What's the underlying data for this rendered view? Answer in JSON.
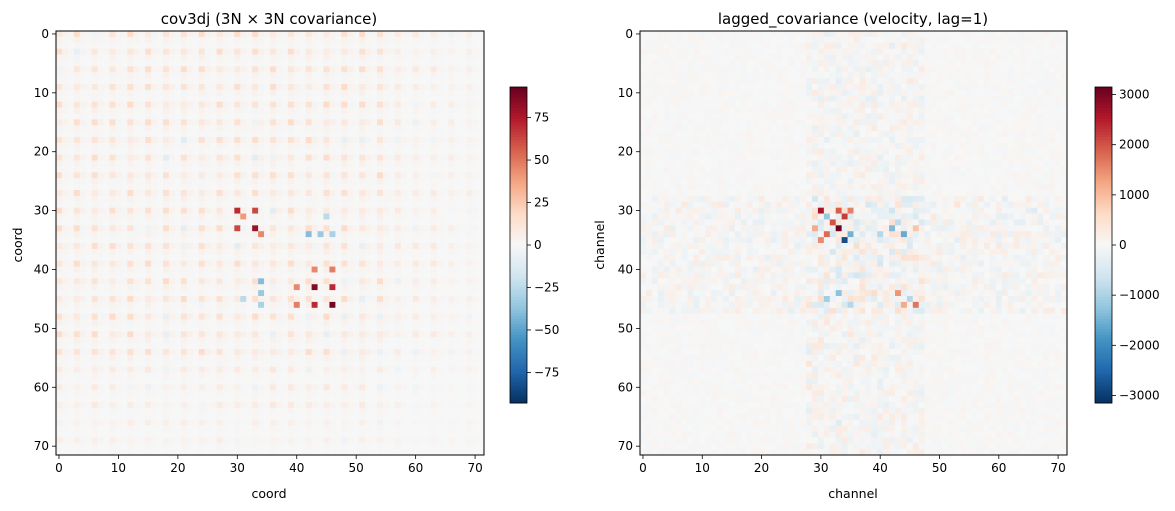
{
  "chart_data": [
    {
      "type": "heatmap",
      "title": "cov3dj  (3N × 3N covariance)",
      "xlabel": "coord",
      "ylabel": "coord",
      "size": 72,
      "xlim": [
        0,
        71
      ],
      "ylim": [
        71,
        0
      ],
      "x_ticks": [
        0,
        10,
        20,
        30,
        40,
        50,
        60,
        70
      ],
      "y_ticks": [
        0,
        10,
        20,
        30,
        40,
        50,
        60,
        70
      ],
      "colormap": "RdBu_r",
      "vmin": -93,
      "vmax": 93,
      "colorbar_ticks": [
        75,
        50,
        25,
        0,
        -25,
        -50,
        -75
      ],
      "colorbar_labels": [
        "75",
        "50",
        "25",
        "0",
        "−25",
        "−50",
        "−75"
      ],
      "hotspots": [
        {
          "x": 30,
          "y": 30,
          "value": 70
        },
        {
          "x": 33,
          "y": 30,
          "value": 65
        },
        {
          "x": 30,
          "y": 33,
          "value": 62
        },
        {
          "x": 33,
          "y": 33,
          "value": 80
        },
        {
          "x": 34,
          "y": 34,
          "value": 45
        },
        {
          "x": 31,
          "y": 31,
          "value": 40
        },
        {
          "x": 43,
          "y": 43,
          "value": 85
        },
        {
          "x": 46,
          "y": 46,
          "value": 90
        },
        {
          "x": 43,
          "y": 46,
          "value": 75
        },
        {
          "x": 46,
          "y": 43,
          "value": 70
        },
        {
          "x": 40,
          "y": 43,
          "value": 50
        },
        {
          "x": 43,
          "y": 40,
          "value": 45
        },
        {
          "x": 46,
          "y": 40,
          "value": 45
        },
        {
          "x": 40,
          "y": 46,
          "value": 48
        },
        {
          "x": 42,
          "y": 34,
          "value": -40
        },
        {
          "x": 44,
          "y": 34,
          "value": -42
        },
        {
          "x": 34,
          "y": 44,
          "value": -35
        },
        {
          "x": 34,
          "y": 46,
          "value": -30
        },
        {
          "x": 31,
          "y": 45,
          "value": -28
        },
        {
          "x": 45,
          "y": 31,
          "value": -25
        }
      ]
    },
    {
      "type": "heatmap",
      "title": "lagged_covariance (velocity, lag=1)",
      "xlabel": "channel",
      "ylabel": "channel",
      "size": 72,
      "xlim": [
        0,
        71
      ],
      "ylim": [
        71,
        0
      ],
      "x_ticks": [
        0,
        10,
        20,
        30,
        40,
        50,
        60,
        70
      ],
      "y_ticks": [
        0,
        10,
        20,
        30,
        40,
        50,
        60,
        70
      ],
      "colormap": "RdBu_r",
      "vmin": -3150,
      "vmax": 3150,
      "colorbar_ticks": [
        3000,
        2000,
        1000,
        0,
        -1000,
        -2000,
        -3000
      ],
      "colorbar_labels": [
        "3000",
        "2000",
        "1000",
        "0",
        "−1000",
        "−2000",
        "−3000"
      ],
      "hotspots": [
        {
          "x": 30,
          "y": 30,
          "value": 2600
        },
        {
          "x": 33,
          "y": 33,
          "value": 3100
        },
        {
          "x": 34,
          "y": 35,
          "value": -2800
        },
        {
          "x": 32,
          "y": 32,
          "value": 2000
        },
        {
          "x": 31,
          "y": 34,
          "value": 1800
        },
        {
          "x": 34,
          "y": 31,
          "value": 2200
        },
        {
          "x": 30,
          "y": 35,
          "value": 1500
        },
        {
          "x": 35,
          "y": 30,
          "value": 1600
        },
        {
          "x": 31,
          "y": 31,
          "value": -1200
        },
        {
          "x": 33,
          "y": 30,
          "value": 1900
        },
        {
          "x": 29,
          "y": 33,
          "value": 1200
        },
        {
          "x": 35,
          "y": 34,
          "value": -1500
        },
        {
          "x": 42,
          "y": 33,
          "value": -1400
        },
        {
          "x": 44,
          "y": 34,
          "value": -1600
        },
        {
          "x": 40,
          "y": 34,
          "value": -900
        },
        {
          "x": 43,
          "y": 32,
          "value": -800
        },
        {
          "x": 46,
          "y": 46,
          "value": 1700
        },
        {
          "x": 43,
          "y": 44,
          "value": 1400
        },
        {
          "x": 44,
          "y": 46,
          "value": 1200
        },
        {
          "x": 45,
          "y": 45,
          "value": -900
        },
        {
          "x": 33,
          "y": 44,
          "value": -1300
        },
        {
          "x": 31,
          "y": 45,
          "value": -1100
        },
        {
          "x": 35,
          "y": 46,
          "value": -900
        },
        {
          "x": 46,
          "y": 33,
          "value": 900
        }
      ]
    }
  ]
}
